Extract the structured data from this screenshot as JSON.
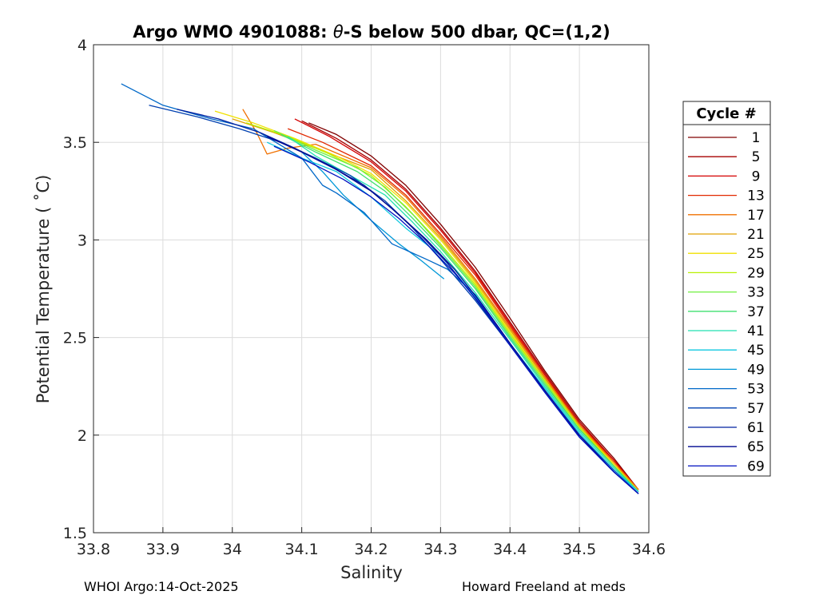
{
  "chart_data": {
    "type": "line",
    "title": {
      "prefix": "Argo WMO 4901088: ",
      "theta": "θ",
      "suffix": "-S below 500 dbar,  QC=(1,2)"
    },
    "xlabel": "Salinity",
    "ylabel": "Potential Temperature ( ˚C)",
    "xlim": [
      33.8,
      34.6
    ],
    "ylim": [
      1.5,
      4.0
    ],
    "xticks": [
      33.8,
      33.9,
      34.0,
      34.1,
      34.2,
      34.3,
      34.4,
      34.5,
      34.6
    ],
    "xtick_labels": [
      "33.8",
      "33.9",
      "34",
      "34.1",
      "34.2",
      "34.3",
      "34.4",
      "34.5",
      "34.6"
    ],
    "yticks": [
      1.5,
      2.0,
      2.5,
      3.0,
      3.5,
      4.0
    ],
    "ytick_labels": [
      "1.5",
      "2",
      "2.5",
      "3",
      "3.5",
      "4"
    ],
    "grid": true,
    "legend": {
      "title": "Cycle #",
      "placement": "outside-right",
      "entries": [
        {
          "label": "1",
          "color": "#800000"
        },
        {
          "label": "5",
          "color": "#a70000"
        },
        {
          "label": "9",
          "color": "#d40000"
        },
        {
          "label": "13",
          "color": "#e12800"
        },
        {
          "label": "17",
          "color": "#f07000"
        },
        {
          "label": "21",
          "color": "#e0a000"
        },
        {
          "label": "25",
          "color": "#f0e000"
        },
        {
          "label": "29",
          "color": "#b8f000"
        },
        {
          "label": "33",
          "color": "#70f040"
        },
        {
          "label": "37",
          "color": "#40e070"
        },
        {
          "label": "41",
          "color": "#20e0b0"
        },
        {
          "label": "45",
          "color": "#10c8e0"
        },
        {
          "label": "49",
          "color": "#0098d8"
        },
        {
          "label": "53",
          "color": "#0068c8"
        },
        {
          "label": "57",
          "color": "#0040b0"
        },
        {
          "label": "61",
          "color": "#0020a0"
        },
        {
          "label": "65",
          "color": "#000890"
        },
        {
          "label": "69",
          "color": "#0010c0"
        }
      ]
    },
    "series": [
      {
        "name": "1",
        "color": "#800000",
        "points": [
          [
            34.11,
            3.6
          ],
          [
            34.15,
            3.54
          ],
          [
            34.2,
            3.43
          ],
          [
            34.25,
            3.28
          ],
          [
            34.3,
            3.08
          ],
          [
            34.35,
            2.86
          ],
          [
            34.4,
            2.6
          ],
          [
            34.45,
            2.33
          ],
          [
            34.5,
            2.08
          ],
          [
            34.55,
            1.88
          ],
          [
            34.585,
            1.72
          ]
        ]
      },
      {
        "name": "5",
        "color": "#a70000",
        "points": [
          [
            34.1,
            3.61
          ],
          [
            34.15,
            3.52
          ],
          [
            34.2,
            3.41
          ],
          [
            34.25,
            3.26
          ],
          [
            34.3,
            3.06
          ],
          [
            34.35,
            2.84
          ],
          [
            34.4,
            2.58
          ],
          [
            34.45,
            2.32
          ],
          [
            34.5,
            2.07
          ],
          [
            34.55,
            1.87
          ],
          [
            34.585,
            1.72
          ]
        ]
      },
      {
        "name": "9",
        "color": "#d40000",
        "points": [
          [
            34.09,
            3.62
          ],
          [
            34.14,
            3.53
          ],
          [
            34.2,
            3.4
          ],
          [
            34.25,
            3.25
          ],
          [
            34.3,
            3.05
          ],
          [
            34.35,
            2.83
          ],
          [
            34.4,
            2.57
          ],
          [
            34.45,
            2.31
          ],
          [
            34.5,
            2.06
          ],
          [
            34.55,
            1.87
          ],
          [
            34.585,
            1.72
          ]
        ]
      },
      {
        "name": "13",
        "color": "#e12800",
        "points": [
          [
            34.08,
            3.57
          ],
          [
            34.13,
            3.5
          ],
          [
            34.2,
            3.38
          ],
          [
            34.25,
            3.23
          ],
          [
            34.3,
            3.03
          ],
          [
            34.35,
            2.82
          ],
          [
            34.4,
            2.56
          ],
          [
            34.45,
            2.3
          ],
          [
            34.5,
            2.06
          ],
          [
            34.55,
            1.86
          ],
          [
            34.585,
            1.72
          ]
        ]
      },
      {
        "name": "17",
        "color": "#f07000",
        "points": [
          [
            34.015,
            3.67
          ],
          [
            34.035,
            3.55
          ],
          [
            34.05,
            3.44
          ],
          [
            34.08,
            3.47
          ],
          [
            34.12,
            3.49
          ],
          [
            34.2,
            3.37
          ],
          [
            34.25,
            3.22
          ],
          [
            34.3,
            3.02
          ],
          [
            34.35,
            2.8
          ],
          [
            34.4,
            2.55
          ],
          [
            34.45,
            2.3
          ],
          [
            34.5,
            2.05
          ],
          [
            34.55,
            1.86
          ],
          [
            34.585,
            1.72
          ]
        ]
      },
      {
        "name": "21",
        "color": "#e0a000",
        "points": [
          [
            34.0,
            3.62
          ],
          [
            34.06,
            3.55
          ],
          [
            34.12,
            3.47
          ],
          [
            34.2,
            3.36
          ],
          [
            34.25,
            3.2
          ],
          [
            34.3,
            3.01
          ],
          [
            34.35,
            2.79
          ],
          [
            34.4,
            2.54
          ],
          [
            34.45,
            2.29
          ],
          [
            34.5,
            2.05
          ],
          [
            34.55,
            1.85
          ],
          [
            34.585,
            1.72
          ]
        ]
      },
      {
        "name": "25",
        "color": "#f0e000",
        "points": [
          [
            33.975,
            3.66
          ],
          [
            34.03,
            3.6
          ],
          [
            34.09,
            3.52
          ],
          [
            34.15,
            3.43
          ],
          [
            34.2,
            3.34
          ],
          [
            34.25,
            3.19
          ],
          [
            34.3,
            3.0
          ],
          [
            34.35,
            2.78
          ],
          [
            34.4,
            2.53
          ],
          [
            34.45,
            2.28
          ],
          [
            34.5,
            2.04
          ],
          [
            34.55,
            1.85
          ],
          [
            34.585,
            1.71
          ]
        ]
      },
      {
        "name": "29",
        "color": "#b8f000",
        "points": [
          [
            34.02,
            3.6
          ],
          [
            34.08,
            3.53
          ],
          [
            34.14,
            3.44
          ],
          [
            34.2,
            3.33
          ],
          [
            34.25,
            3.17
          ],
          [
            34.3,
            2.98
          ],
          [
            34.35,
            2.77
          ],
          [
            34.4,
            2.52
          ],
          [
            34.45,
            2.28
          ],
          [
            34.5,
            2.04
          ],
          [
            34.55,
            1.84
          ],
          [
            34.585,
            1.71
          ]
        ]
      },
      {
        "name": "33",
        "color": "#70f040",
        "points": [
          [
            34.06,
            3.56
          ],
          [
            34.12,
            3.46
          ],
          [
            34.18,
            3.37
          ],
          [
            34.22,
            3.27
          ],
          [
            34.26,
            3.13
          ],
          [
            34.3,
            2.97
          ],
          [
            34.35,
            2.76
          ],
          [
            34.4,
            2.51
          ],
          [
            34.45,
            2.27
          ],
          [
            34.5,
            2.03
          ],
          [
            34.55,
            1.84
          ],
          [
            34.585,
            1.71
          ]
        ]
      },
      {
        "name": "37",
        "color": "#40e070",
        "points": [
          [
            34.07,
            3.54
          ],
          [
            34.12,
            3.45
          ],
          [
            34.18,
            3.35
          ],
          [
            34.22,
            3.25
          ],
          [
            34.26,
            3.11
          ],
          [
            34.3,
            2.96
          ],
          [
            34.35,
            2.75
          ],
          [
            34.4,
            2.5
          ],
          [
            34.45,
            2.26
          ],
          [
            34.5,
            2.03
          ],
          [
            34.55,
            1.84
          ],
          [
            34.585,
            1.71
          ]
        ]
      },
      {
        "name": "41",
        "color": "#20e0b0",
        "points": [
          [
            34.08,
            3.53
          ],
          [
            34.12,
            3.43
          ],
          [
            34.17,
            3.33
          ],
          [
            34.22,
            3.23
          ],
          [
            34.26,
            3.09
          ],
          [
            34.3,
            2.94
          ],
          [
            34.35,
            2.73
          ],
          [
            34.4,
            2.49
          ],
          [
            34.45,
            2.25
          ],
          [
            34.5,
            2.02
          ],
          [
            34.55,
            1.83
          ],
          [
            34.585,
            1.71
          ]
        ]
      },
      {
        "name": "45",
        "color": "#10c8e0",
        "points": [
          [
            34.05,
            3.5
          ],
          [
            34.1,
            3.42
          ],
          [
            34.15,
            3.35
          ],
          [
            34.2,
            3.22
          ],
          [
            34.25,
            3.06
          ],
          [
            34.3,
            2.92
          ],
          [
            34.35,
            2.71
          ],
          [
            34.4,
            2.47
          ],
          [
            34.45,
            2.24
          ],
          [
            34.5,
            2.01
          ],
          [
            34.55,
            1.82
          ],
          [
            34.585,
            1.71
          ]
        ]
      },
      {
        "name": "49",
        "color": "#0098d8",
        "points": [
          [
            34.1,
            3.45
          ],
          [
            34.13,
            3.35
          ],
          [
            34.16,
            3.23
          ],
          [
            34.2,
            3.1
          ],
          [
            34.24,
            2.98
          ],
          [
            34.27,
            2.9
          ],
          [
            34.305,
            2.8
          ]
        ]
      },
      {
        "name": "53",
        "color": "#0068c8",
        "points": [
          [
            33.84,
            3.8
          ],
          [
            33.9,
            3.69
          ],
          [
            33.97,
            3.62
          ],
          [
            34.03,
            3.57
          ],
          [
            34.1,
            3.42
          ],
          [
            34.13,
            3.28
          ],
          [
            34.15,
            3.24
          ],
          [
            34.19,
            3.14
          ],
          [
            34.23,
            2.98
          ],
          [
            34.28,
            2.9
          ],
          [
            34.31,
            2.85
          ],
          [
            34.35,
            2.72
          ],
          [
            34.4,
            2.47
          ],
          [
            34.45,
            2.23
          ],
          [
            34.5,
            2.0
          ],
          [
            34.55,
            1.82
          ],
          [
            34.585,
            1.7
          ]
        ]
      },
      {
        "name": "57",
        "color": "#0040b0",
        "points": [
          [
            33.88,
            3.69
          ],
          [
            33.95,
            3.63
          ],
          [
            34.01,
            3.57
          ],
          [
            34.07,
            3.5
          ],
          [
            34.12,
            3.42
          ],
          [
            34.17,
            3.33
          ],
          [
            34.22,
            3.2
          ],
          [
            34.26,
            3.06
          ],
          [
            34.3,
            2.9
          ],
          [
            34.35,
            2.69
          ],
          [
            34.4,
            2.46
          ],
          [
            34.45,
            2.22
          ],
          [
            34.5,
            1.99
          ],
          [
            34.55,
            1.81
          ],
          [
            34.585,
            1.7
          ]
        ]
      },
      {
        "name": "61",
        "color": "#0020a0",
        "points": [
          [
            33.92,
            3.67
          ],
          [
            33.98,
            3.62
          ],
          [
            34.04,
            3.55
          ],
          [
            34.09,
            3.47
          ],
          [
            34.14,
            3.38
          ],
          [
            34.19,
            3.28
          ],
          [
            34.23,
            3.16
          ],
          [
            34.27,
            3.03
          ],
          [
            34.31,
            2.88
          ],
          [
            34.35,
            2.7
          ],
          [
            34.4,
            2.46
          ],
          [
            34.45,
            2.22
          ],
          [
            34.5,
            1.99
          ],
          [
            34.55,
            1.81
          ],
          [
            34.585,
            1.7
          ]
        ]
      },
      {
        "name": "65",
        "color": "#000890",
        "points": [
          [
            34.05,
            3.53
          ],
          [
            34.1,
            3.45
          ],
          [
            34.15,
            3.36
          ],
          [
            34.2,
            3.25
          ],
          [
            34.24,
            3.13
          ],
          [
            34.28,
            3.0
          ],
          [
            34.32,
            2.85
          ],
          [
            34.36,
            2.67
          ],
          [
            34.4,
            2.47
          ],
          [
            34.45,
            2.23
          ],
          [
            34.5,
            2.0
          ],
          [
            34.55,
            1.81
          ],
          [
            34.585,
            1.7
          ]
        ]
      },
      {
        "name": "69",
        "color": "#0010c0",
        "points": [
          [
            34.06,
            3.48
          ],
          [
            34.11,
            3.4
          ],
          [
            34.16,
            3.31
          ],
          [
            34.2,
            3.22
          ],
          [
            34.24,
            3.11
          ],
          [
            34.28,
            2.98
          ],
          [
            34.32,
            2.83
          ],
          [
            34.36,
            2.66
          ],
          [
            34.4,
            2.46
          ],
          [
            34.45,
            2.22
          ],
          [
            34.5,
            1.99
          ],
          [
            34.55,
            1.81
          ],
          [
            34.585,
            1.7
          ]
        ]
      }
    ]
  },
  "footer": {
    "left": "WHOI Argo:14-Oct-2025",
    "right": "Howard Freeland at meds"
  }
}
